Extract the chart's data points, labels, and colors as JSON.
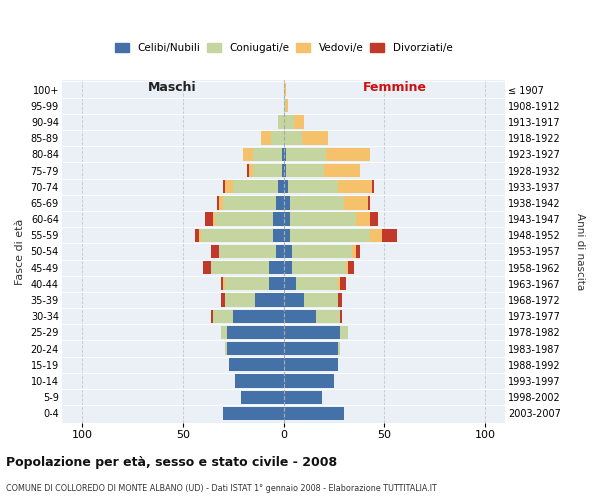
{
  "age_groups": [
    "0-4",
    "5-9",
    "10-14",
    "15-19",
    "20-24",
    "25-29",
    "30-34",
    "35-39",
    "40-44",
    "45-49",
    "50-54",
    "55-59",
    "60-64",
    "65-69",
    "70-74",
    "75-79",
    "80-84",
    "85-89",
    "90-94",
    "95-99",
    "100+"
  ],
  "birth_years": [
    "2003-2007",
    "1998-2002",
    "1993-1997",
    "1988-1992",
    "1983-1987",
    "1978-1982",
    "1973-1977",
    "1968-1972",
    "1963-1967",
    "1958-1962",
    "1953-1957",
    "1948-1952",
    "1943-1947",
    "1938-1942",
    "1933-1937",
    "1928-1932",
    "1923-1927",
    "1918-1922",
    "1913-1917",
    "1908-1912",
    "≤ 1907"
  ],
  "colors": {
    "celibi": "#4472a8",
    "coniugati": "#c5d5a0",
    "vedovi": "#f5c26b",
    "divorziati": "#c0392b"
  },
  "males": {
    "celibi": [
      30,
      21,
      24,
      27,
      28,
      28,
      25,
      14,
      7,
      7,
      4,
      5,
      5,
      4,
      3,
      1,
      1,
      0,
      0,
      0,
      0
    ],
    "coniugati": [
      0,
      0,
      0,
      0,
      1,
      3,
      10,
      15,
      22,
      29,
      28,
      36,
      29,
      26,
      22,
      14,
      14,
      6,
      3,
      0,
      0
    ],
    "vedovi": [
      0,
      0,
      0,
      0,
      0,
      0,
      0,
      0,
      1,
      0,
      0,
      1,
      1,
      2,
      4,
      2,
      5,
      5,
      0,
      0,
      0
    ],
    "divorziati": [
      0,
      0,
      0,
      0,
      0,
      0,
      1,
      2,
      1,
      4,
      4,
      2,
      4,
      1,
      1,
      1,
      0,
      0,
      0,
      0,
      0
    ]
  },
  "females": {
    "celibi": [
      30,
      19,
      25,
      27,
      27,
      28,
      16,
      10,
      6,
      4,
      4,
      3,
      3,
      3,
      2,
      1,
      1,
      0,
      0,
      0,
      0
    ],
    "coniugati": [
      0,
      0,
      0,
      0,
      1,
      4,
      12,
      17,
      21,
      27,
      30,
      40,
      33,
      27,
      25,
      19,
      20,
      9,
      5,
      1,
      0
    ],
    "vedovi": [
      0,
      0,
      0,
      0,
      0,
      0,
      0,
      0,
      1,
      1,
      2,
      6,
      7,
      12,
      17,
      18,
      22,
      13,
      5,
      1,
      1
    ],
    "divorziati": [
      0,
      0,
      0,
      0,
      0,
      0,
      1,
      2,
      3,
      3,
      2,
      7,
      4,
      1,
      1,
      0,
      0,
      0,
      0,
      0,
      0
    ]
  },
  "xlim": 110,
  "title": "Popolazione per età, sesso e stato civile - 2008",
  "subtitle": "COMUNE DI COLLOREDO DI MONTE ALBANO (UD) - Dati ISTAT 1° gennaio 2008 - Elaborazione TUTTITALIA.IT",
  "ylabel": "Fasce di età",
  "ylabel_right": "Anni di nascita",
  "xlabel_left": "Maschi",
  "xlabel_right": "Femmine",
  "bg_color": "#eaf0f6",
  "bar_bg": "#ffffff",
  "legend_labels": [
    "Celibi/Nubili",
    "Coniugati/e",
    "Vedovi/e",
    "Divorziati/e"
  ]
}
